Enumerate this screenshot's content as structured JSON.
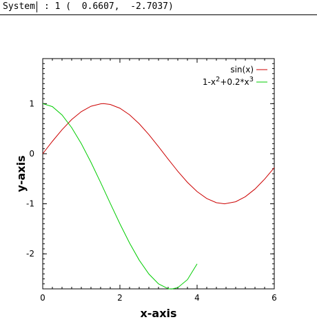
{
  "status": {
    "system_label": "System",
    "readout": ": 1 (  0.6607,  -2.7037)"
  },
  "chart_data": {
    "type": "line",
    "xlabel": "x-axis",
    "ylabel": "y-axis",
    "xlim": [
      0,
      6
    ],
    "ylim": [
      -2.7,
      1.9
    ],
    "x_ticks": [
      0,
      2,
      4,
      6
    ],
    "y_ticks": [
      1,
      0,
      -1,
      -2
    ],
    "grid": false,
    "legend_position": "top-right",
    "series": [
      {
        "name": "sin(x)",
        "color": "#cc0000",
        "x": [
          0,
          0.25,
          0.5,
          0.75,
          1,
          1.25,
          1.5,
          1.5708,
          1.75,
          2,
          2.25,
          2.5,
          2.75,
          3,
          3.25,
          3.5,
          3.75,
          4,
          4.25,
          4.5,
          4.7124,
          5,
          5.25,
          5.5,
          5.75,
          6
        ],
        "y": [
          0,
          0.247,
          0.479,
          0.682,
          0.841,
          0.949,
          0.997,
          1.0,
          0.984,
          0.909,
          0.778,
          0.598,
          0.382,
          0.141,
          -0.108,
          -0.351,
          -0.572,
          -0.757,
          -0.895,
          -0.978,
          -1.0,
          -0.959,
          -0.859,
          -0.706,
          -0.508,
          -0.279
        ]
      },
      {
        "name_parts": [
          "1-x",
          "2",
          "+0.2*x",
          "3"
        ],
        "color": "#00cc00",
        "x": [
          0,
          0.25,
          0.5,
          0.75,
          1,
          1.25,
          1.5,
          1.75,
          2,
          2.25,
          2.5,
          2.75,
          3,
          3.25,
          3.333,
          3.5,
          3.75,
          4
        ],
        "y": [
          1.0,
          0.941,
          0.775,
          0.522,
          0.2,
          -0.172,
          -0.575,
          -0.991,
          -1.4,
          -1.784,
          -2.125,
          -2.403,
          -2.6,
          -2.697,
          -2.704,
          -2.675,
          -2.516,
          -2.2
        ]
      }
    ]
  }
}
